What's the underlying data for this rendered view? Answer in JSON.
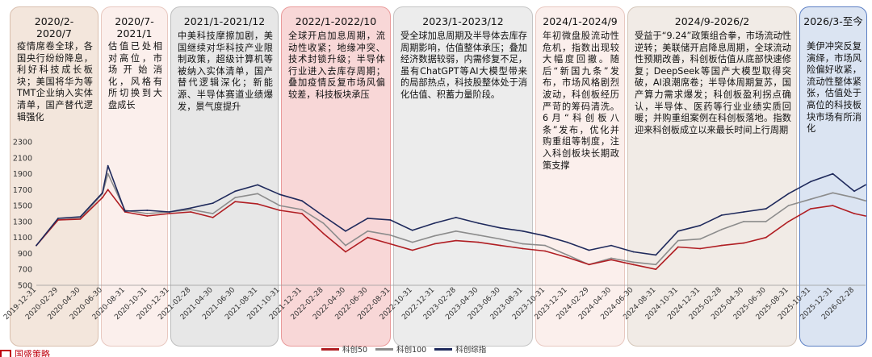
{
  "periods": [
    {
      "title": "2020/2-\n2020/7",
      "text": "疫情席卷全球，各国央行纷纷降息，利好科技成长板块；美国将华为等TMT企业纳入实体清单，国产替代逻辑强化",
      "fill": "#f3e6dc",
      "border": "#d9bfae"
    },
    {
      "title": "2020/7-\n2021/1",
      "text": "估值已处相对高位，市场开始消化，风格有所切换到大盘成长",
      "fill": "#fbefec",
      "border": "#e8c8c0"
    },
    {
      "title": "2021/1-2021/12",
      "text": "中美科技摩擦加剧，美国继续对华科技产业限制政策，超级计算机等被纳入实体清单，国产替代逻辑深化；新能源、半导体赛道业绩爆发，景气度提升",
      "fill": "#e7e7e7",
      "border": "#bdbdbd"
    },
    {
      "title": "2022/1-2022/10",
      "text": "全球开启加息周期，流动性收紧；地缘冲突、技术封锁升级；半导体行业进入去库存周期；叠加疫情反复市场风偏较差，科技板块承压",
      "fill": "#f8d7d7",
      "border": "#e99a9a"
    },
    {
      "title": "2023/1-2023/12",
      "text": "受全球加息周期及半导体去库存周期影响，估值整体承压；叠加经济数据较弱，内需修复不足，虽有ChatGPT等AI大模型带来的局部热点，科技股整体处于消化估值、积蓄力量阶段。",
      "fill": "#ececec",
      "border": "#c4c4c4"
    },
    {
      "title": "2024/1-2024/9",
      "text": "年初微盘股流动性危机，指数出现较大幅度回撤。随后“新国九条”发布，市场风格剧烈波动，科创板经历严苛的筹码清洗。6月“科创板八条”发布，优化并购重组等制度，注入科创板块长期政策支撑",
      "fill": "#fbefec",
      "border": "#e8c8c0"
    },
    {
      "title": "2024/9-2026/2",
      "text": "受益于“9.24”政策组合拳，市场流动性逆转；美联储开启降息周期，全球流动性预期改善，科创板估值从底部快速修复；DeepSeek等国产大模型取得突破，AI浪潮席卷；半导体周期复苏，国产算力需求爆发；科创板盈利拐点确认，半导体、医药等行业业绩实质回暖；并购重组案例在科创板落地。指数迎来科创板成立以来最长时间上行周期",
      "fill": "#f1ebe6",
      "border": "#d4c5b8"
    },
    {
      "title": "2026/3-至今",
      "text": "美伊冲突反复演绎，市场风险偏好收紧，流动性整体紧张，估值处于高位的科技板块市场有所消化",
      "fill": "#dbe4f2",
      "border": "#5b7fc4"
    }
  ],
  "legend": {
    "kc50": "科创50",
    "kc100": "科创100",
    "kczz": "科创综指"
  },
  "colors": {
    "kc50": "#b01e23",
    "kc100": "#8c8c8c",
    "kczz": "#1f2a5c",
    "source": "#c0000f"
  },
  "source_label": "国盛策略",
  "chart_data": {
    "type": "line",
    "title": "",
    "xlabel": "",
    "ylabel": "",
    "ylim": [
      500,
      2300
    ],
    "yticks": [
      500,
      700,
      900,
      1100,
      1300,
      1500,
      1700,
      1900,
      2100,
      2300
    ],
    "xticks": [
      "2019-12-31",
      "2020-02-29",
      "2020-04-30",
      "2020-06-30",
      "2020-08-31",
      "2020-10-31",
      "2020-12-31",
      "2021-02-28",
      "2021-04-30",
      "2021-06-30",
      "2021-08-31",
      "2021-10-31",
      "2021-12-31",
      "2022-02-28",
      "2022-04-30",
      "2022-06-30",
      "2022-08-31",
      "2022-10-31",
      "2022-12-31",
      "2023-02-28",
      "2023-04-30",
      "2023-06-30",
      "2023-08-31",
      "2023-10-31",
      "2023-12-31",
      "2024-02-29",
      "2024-04-30",
      "2024-06-30",
      "2024-08-31",
      "2024-10-31",
      "2024-12-31",
      "2025-02-28",
      "2025-04-30",
      "2025-06-30",
      "2025-08-31",
      "2025-10-31",
      "2025-12-31",
      "2026-02-28"
    ],
    "x": [
      "2019-12-31",
      "2020-02-29",
      "2020-04-30",
      "2020-06-30",
      "2020-07-15",
      "2020-08-31",
      "2020-10-31",
      "2020-12-31",
      "2021-02-28",
      "2021-04-30",
      "2021-06-30",
      "2021-08-31",
      "2021-10-31",
      "2021-12-31",
      "2022-02-28",
      "2022-04-30",
      "2022-06-30",
      "2022-08-31",
      "2022-10-31",
      "2022-12-31",
      "2023-02-28",
      "2023-04-30",
      "2023-06-30",
      "2023-08-31",
      "2023-10-31",
      "2023-12-31",
      "2024-02-29",
      "2024-04-30",
      "2024-06-30",
      "2024-08-31",
      "2024-10-31",
      "2024-12-31",
      "2025-02-28",
      "2025-04-30",
      "2025-06-30",
      "2025-08-31",
      "2025-10-31",
      "2025-12-31",
      "2026-02-28",
      "2026-03-31"
    ],
    "series": [
      {
        "name": "科创50",
        "values": [
          1000,
          1320,
          1330,
          1600,
          1700,
          1420,
          1370,
          1400,
          1420,
          1350,
          1550,
          1520,
          1440,
          1400,
          1150,
          920,
          1100,
          1020,
          940,
          1020,
          1060,
          1040,
          1000,
          960,
          930,
          850,
          760,
          820,
          760,
          700,
          980,
          960,
          1000,
          1030,
          1100,
          1300,
          1460,
          1500,
          1400,
          1370
        ]
      },
      {
        "name": "科创100",
        "values": [
          1000,
          1320,
          1340,
          1650,
          1900,
          1440,
          1400,
          1420,
          1450,
          1400,
          1600,
          1650,
          1500,
          1450,
          1280,
          1000,
          1180,
          1130,
          1040,
          1120,
          1180,
          1130,
          1080,
          1020,
          1000,
          880,
          760,
          840,
          790,
          760,
          1060,
          1080,
          1200,
          1300,
          1300,
          1500,
          1580,
          1660,
          1600,
          1560
        ]
      },
      {
        "name": "科创综指",
        "values": [
          1000,
          1340,
          1360,
          1660,
          2000,
          1430,
          1440,
          1420,
          1470,
          1530,
          1680,
          1760,
          1640,
          1560,
          1370,
          1180,
          1340,
          1320,
          1190,
          1280,
          1350,
          1280,
          1220,
          1180,
          1120,
          1040,
          940,
          1000,
          920,
          880,
          1180,
          1250,
          1380,
          1420,
          1460,
          1650,
          1800,
          1900,
          1680,
          1760
        ]
      }
    ]
  }
}
